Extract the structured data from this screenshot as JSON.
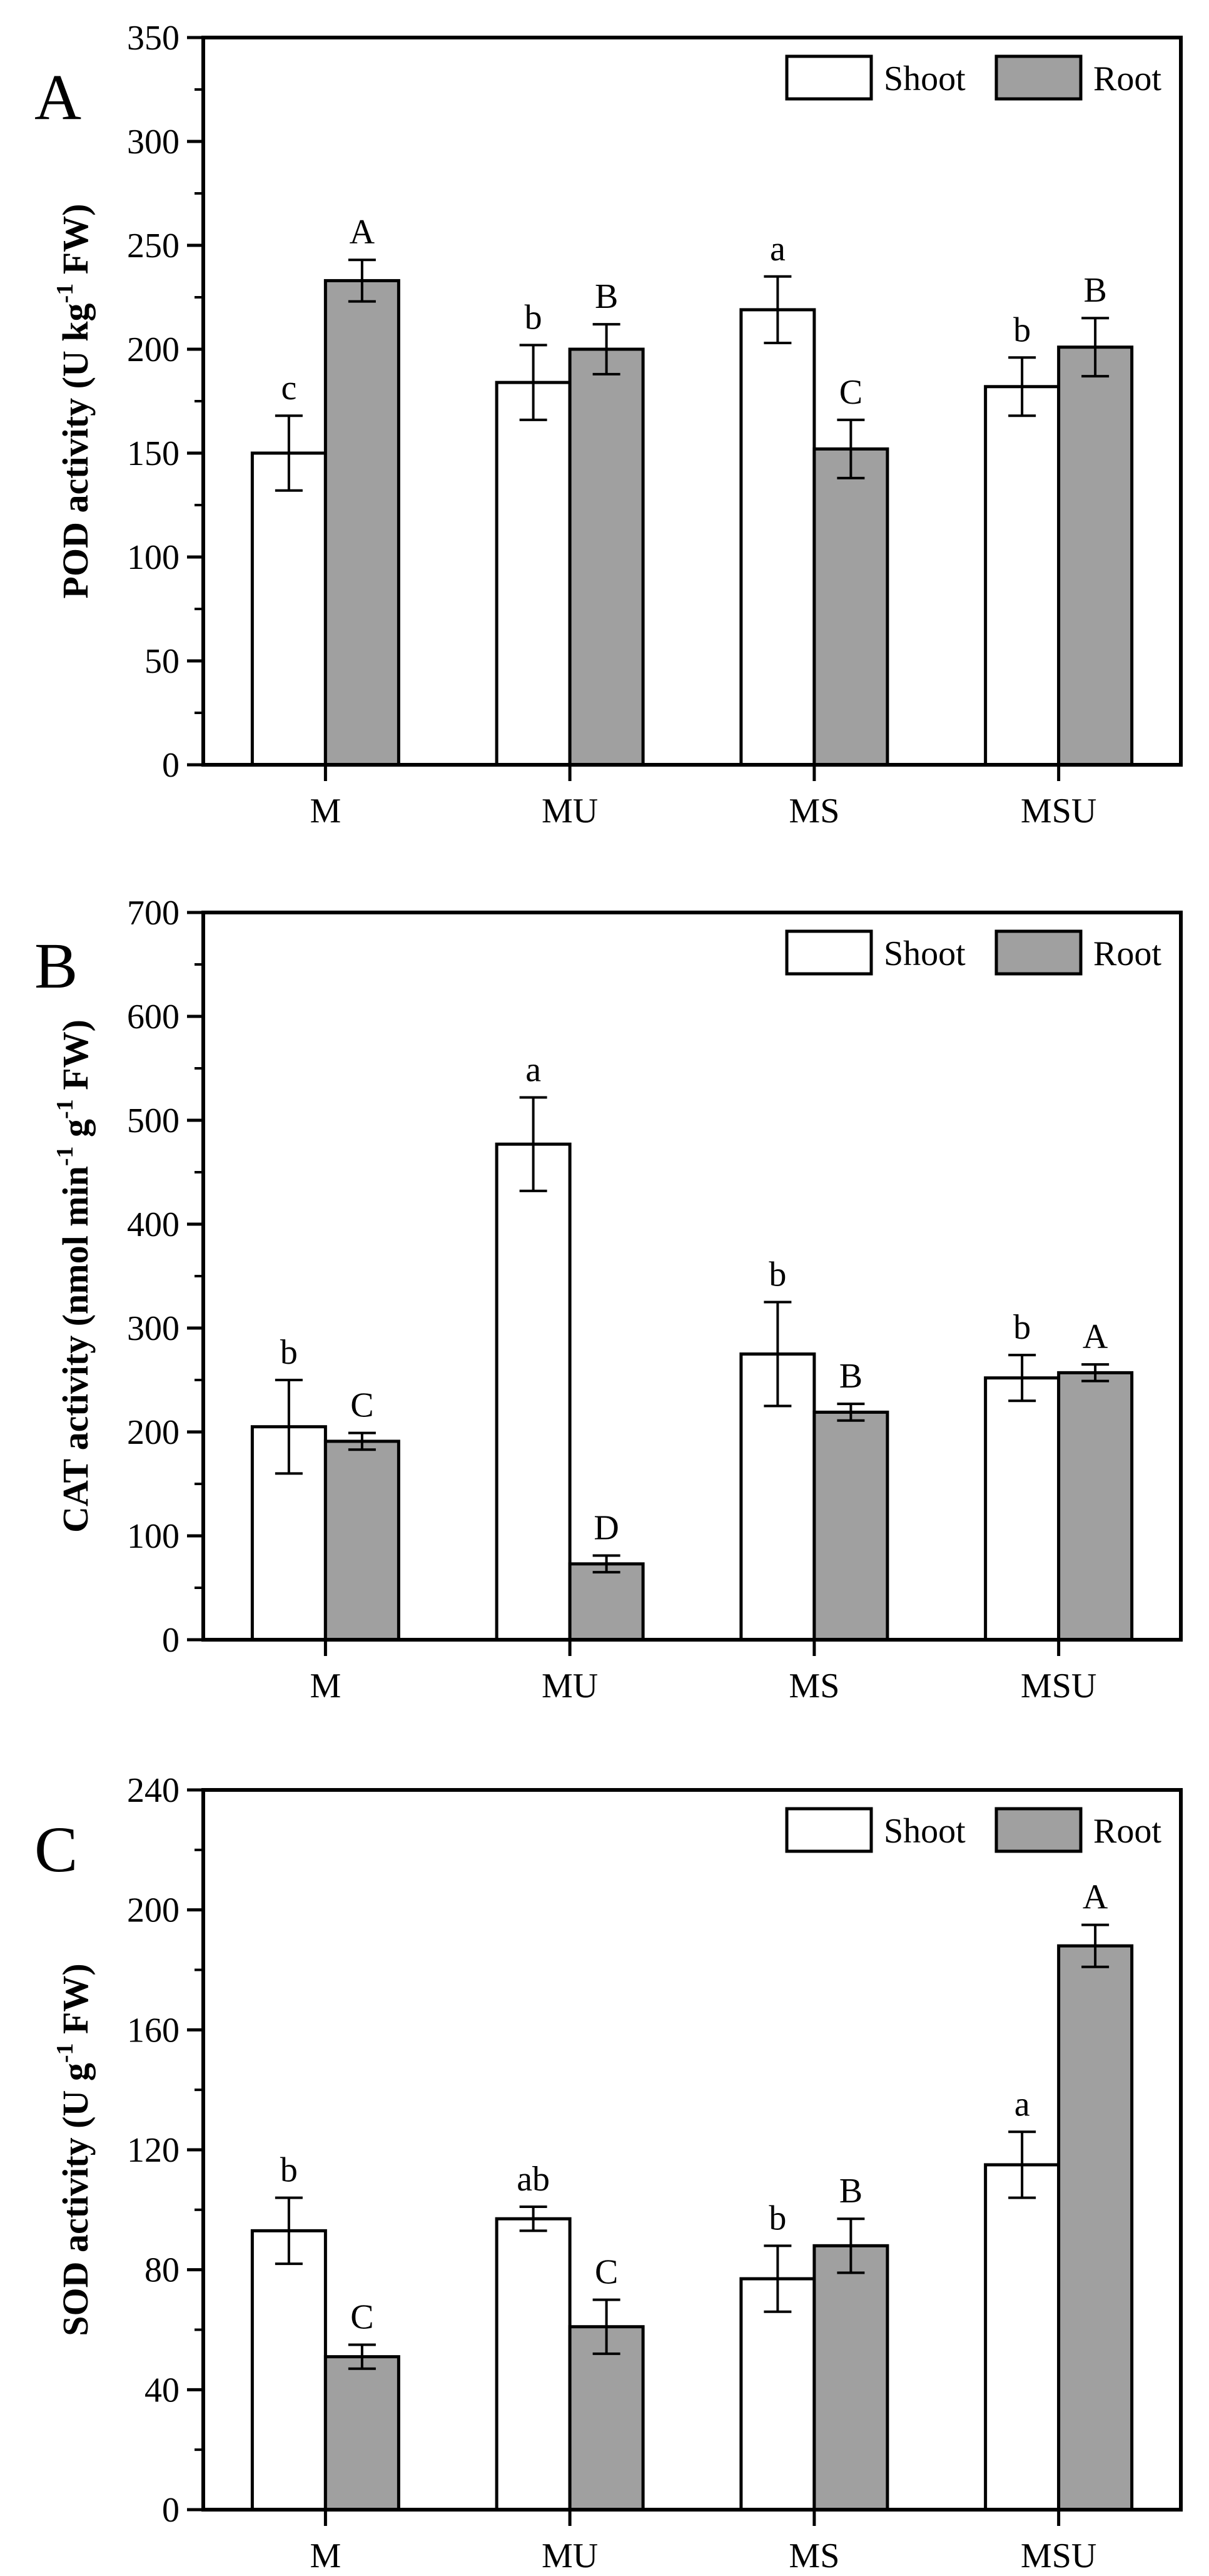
{
  "series_names": [
    "Shoot",
    "Root"
  ],
  "colors": {
    "shoot": "#ffffff",
    "root": "#a0a0a0",
    "stroke": "#000000"
  },
  "chart_data": [
    {
      "type": "bar",
      "panel": "A",
      "ylabel": [
        "POD activity (U kg",
        "-1",
        " FW)"
      ],
      "ylim": [
        0,
        350
      ],
      "ymajor": 50,
      "ytick_labels": [
        "0",
        "50",
        "100",
        "150",
        "200",
        "250",
        "300",
        "350"
      ],
      "categories": [
        "M",
        "MU",
        "MS",
        "MSU"
      ],
      "legend_position": "top-right",
      "series": [
        {
          "name": "Shoot",
          "values": [
            150,
            184,
            219,
            182
          ],
          "errors": [
            18,
            18,
            16,
            14
          ],
          "letters": [
            "c",
            "b",
            "a",
            "b"
          ]
        },
        {
          "name": "Root",
          "values": [
            233,
            200,
            152,
            201
          ],
          "errors": [
            10,
            12,
            14,
            14
          ],
          "letters": [
            "A",
            "B",
            "C",
            "B"
          ]
        }
      ]
    },
    {
      "type": "bar",
      "panel": "B",
      "ylabel": [
        "CAT activity (nmol min",
        "-1",
        " g",
        "-1",
        " FW)"
      ],
      "ylim": [
        0,
        700
      ],
      "ymajor": 100,
      "ytick_labels": [
        "0",
        "100",
        "200",
        "300",
        "400",
        "500",
        "600",
        "700"
      ],
      "categories": [
        "M",
        "MU",
        "MS",
        "MSU"
      ],
      "legend_position": "top-right",
      "series": [
        {
          "name": "Shoot",
          "values": [
            205,
            477,
            275,
            252
          ],
          "errors": [
            45,
            45,
            50,
            22
          ],
          "letters": [
            "b",
            "a",
            "b",
            "b"
          ]
        },
        {
          "name": "Root",
          "values": [
            191,
            73,
            219,
            257
          ],
          "errors": [
            8,
            8,
            8,
            8
          ],
          "letters": [
            "C",
            "D",
            "B",
            "A"
          ]
        }
      ]
    },
    {
      "type": "bar",
      "panel": "C",
      "ylabel": [
        "SOD activity (U g",
        "-1",
        " FW)"
      ],
      "ylim": [
        0,
        240
      ],
      "ymajor": 40,
      "ytick_labels": [
        "0",
        "40",
        "80",
        "120",
        "160",
        "200",
        "240"
      ],
      "categories": [
        "M",
        "MU",
        "MS",
        "MSU"
      ],
      "legend_position": "top-right",
      "series": [
        {
          "name": "Shoot",
          "values": [
            93,
            97,
            77,
            115
          ],
          "errors": [
            11,
            4,
            11,
            11
          ],
          "letters": [
            "b",
            "ab",
            "b",
            "a"
          ]
        },
        {
          "name": "Root",
          "values": [
            51,
            61,
            88,
            188
          ],
          "errors": [
            4,
            9,
            9,
            7
          ],
          "letters": [
            "C",
            "C",
            "B",
            "A"
          ]
        }
      ]
    }
  ]
}
